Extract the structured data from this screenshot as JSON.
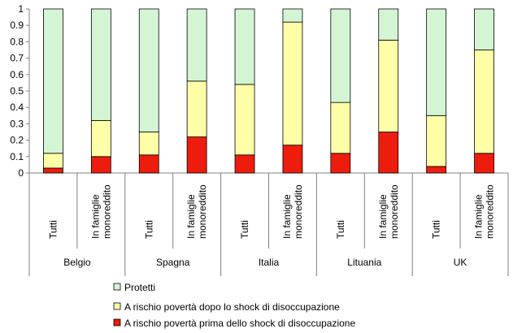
{
  "chart_data": {
    "type": "bar",
    "stacked": true,
    "title": "",
    "xlabel": "",
    "ylabel": "",
    "ylim": [
      0,
      1
    ],
    "yticks": [
      "0",
      "0.1",
      "0.2",
      "0.3",
      "0.4",
      "0.5",
      "0.6",
      "0.7",
      "0.8",
      "0.9",
      "1"
    ],
    "groups": [
      "Belgio",
      "Spagna",
      "Italia",
      "Lituania",
      "UK"
    ],
    "sub_categories": [
      "Tutti",
      "In famiglie monoreddito"
    ],
    "categories": [
      {
        "group": "Belgio",
        "label": "Tutti"
      },
      {
        "group": "Belgio",
        "label": "In famiglie monoreddito"
      },
      {
        "group": "Spagna",
        "label": "Tutti"
      },
      {
        "group": "Spagna",
        "label": "In famiglie monoreddito"
      },
      {
        "group": "Italia",
        "label": "Tutti"
      },
      {
        "group": "Italia",
        "label": "In famiglie monoreddito"
      },
      {
        "group": "Lituania",
        "label": "Tutti"
      },
      {
        "group": "Lituania",
        "label": "In famiglie monoreddito"
      },
      {
        "group": "UK",
        "label": "Tutti"
      },
      {
        "group": "UK",
        "label": "In famiglie monoreddito"
      }
    ],
    "series": [
      {
        "name": "A rischio povertà prima dello shock di disoccupazione",
        "color": "#ee1c0c",
        "values": [
          0.03,
          0.1,
          0.11,
          0.22,
          0.11,
          0.17,
          0.12,
          0.25,
          0.04,
          0.12
        ]
      },
      {
        "name": "A rischio povertà dopo lo shock di disoccupazione",
        "color": "#ffffa8",
        "values": [
          0.09,
          0.22,
          0.14,
          0.34,
          0.43,
          0.75,
          0.31,
          0.56,
          0.31,
          0.63
        ]
      },
      {
        "name": "Protetti",
        "color": "#d4f5d4",
        "values": [
          0.88,
          0.68,
          0.75,
          0.44,
          0.46,
          0.08,
          0.57,
          0.19,
          0.65,
          0.25
        ]
      }
    ],
    "legend": {
      "position": "bottom",
      "order": [
        "Protetti",
        "A rischio povertà dopo lo shock di disoccupazione",
        "A rischio povertà prima dello shock di disoccupazione"
      ]
    },
    "grid": false
  }
}
